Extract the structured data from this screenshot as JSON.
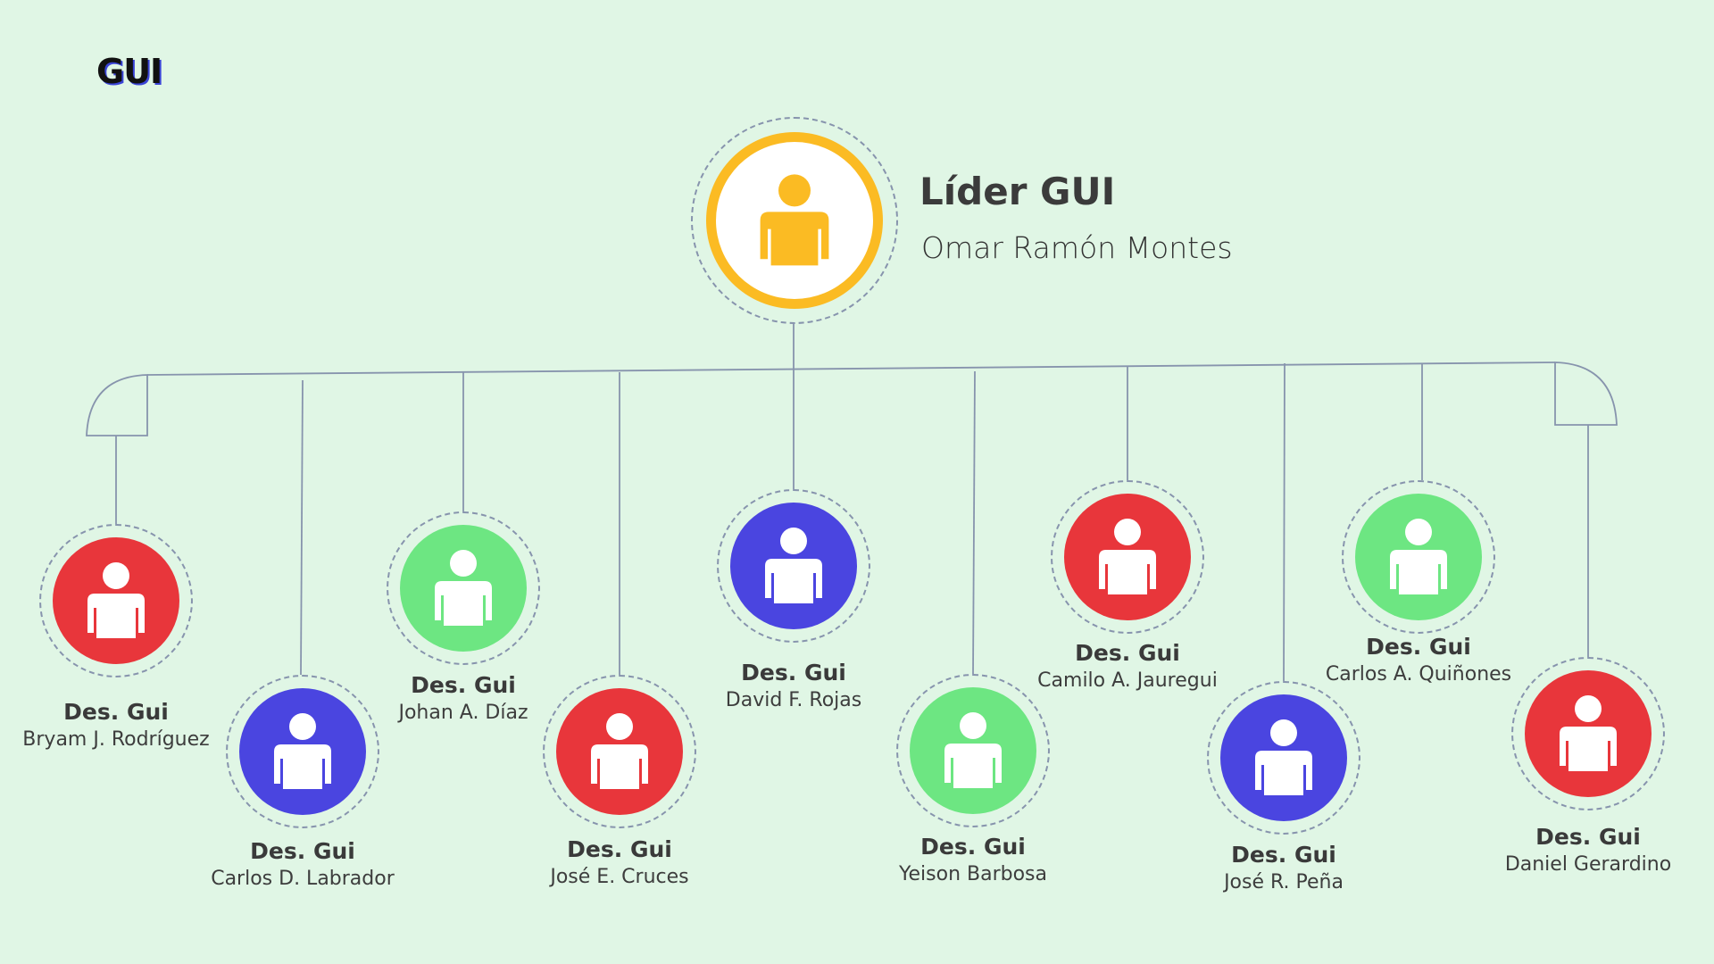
{
  "logo": "GUI",
  "leader": {
    "title": "Líder GUI",
    "name": "Omar Ramón Montes",
    "color": "#fbbb23",
    "ring_color": "#ffffff"
  },
  "member_role": "Des. Gui",
  "colors": {
    "background": "#e0f6e5",
    "connector": "#8794ad",
    "red": "#e8363b",
    "blue": "#4a45e0",
    "green": "#6de682",
    "icon": "#ffffff"
  },
  "icon_name": "person-icon",
  "members": [
    {
      "name": "Bryam J. Rodríguez",
      "color": "red"
    },
    {
      "name": "Carlos D. Labrador",
      "color": "blue"
    },
    {
      "name": "Johan A. Díaz",
      "color": "green"
    },
    {
      "name": "José E. Cruces",
      "color": "red"
    },
    {
      "name": "David F. Rojas",
      "color": "blue"
    },
    {
      "name": "Yeison Barbosa",
      "color": "green"
    },
    {
      "name": "Camilo A. Jauregui",
      "color": "red"
    },
    {
      "name": "José R. Peña",
      "color": "blue"
    },
    {
      "name": "Carlos A. Quiñones",
      "color": "green"
    },
    {
      "name": "Daniel Gerardino",
      "color": "red"
    }
  ]
}
